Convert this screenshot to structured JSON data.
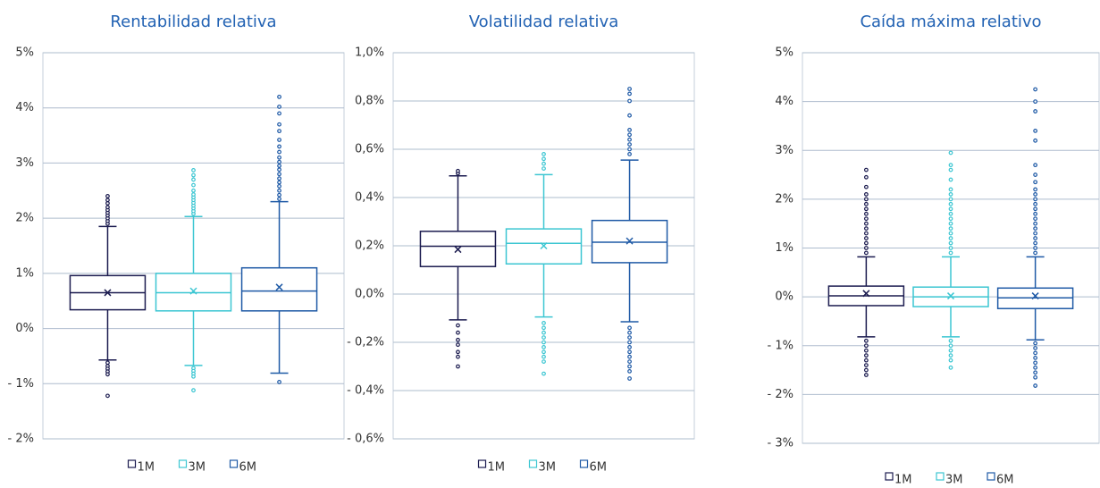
{
  "chart_data": [
    {
      "type": "box",
      "title": "Rentabilidad relativa",
      "ylim": [
        -2,
        5
      ],
      "yticks": [
        {
          "value": -2,
          "label": "- 2%"
        },
        {
          "value": -1,
          "label": "- 1%"
        },
        {
          "value": 0,
          "label": "0%"
        },
        {
          "value": 1,
          "label": "1%"
        },
        {
          "value": 2,
          "label": "2%"
        },
        {
          "value": 3,
          "label": "3%"
        },
        {
          "value": 4,
          "label": "4%"
        },
        {
          "value": 5,
          "label": "5%"
        }
      ],
      "grid": true,
      "series": [
        {
          "name": "1M",
          "color": "#1b1b4f",
          "min": -0.57,
          "q1": 0.34,
          "median": 0.65,
          "q3": 0.96,
          "max": 1.85,
          "mean": 0.65,
          "outliers": [
            1.9,
            1.95,
            2.0,
            2.05,
            2.1,
            2.15,
            2.2,
            2.27,
            2.33,
            2.4,
            -0.62,
            -0.68,
            -0.73,
            -0.78,
            -0.83,
            -1.22
          ]
        },
        {
          "name": "3M",
          "color": "#3cc6d2",
          "min": -0.67,
          "q1": 0.32,
          "median": 0.65,
          "q3": 1.0,
          "max": 2.03,
          "mean": 0.68,
          "outliers": [
            2.08,
            2.13,
            2.18,
            2.23,
            2.28,
            2.33,
            2.38,
            2.43,
            2.5,
            2.6,
            2.7,
            2.78,
            2.87,
            -0.72,
            -0.77,
            -0.82,
            -0.87,
            -1.12
          ]
        },
        {
          "name": "6M",
          "color": "#1f5aa6",
          "min": -0.81,
          "q1": 0.32,
          "median": 0.68,
          "q3": 1.1,
          "max": 2.3,
          "mean": 0.75,
          "outliers": [
            2.35,
            2.42,
            2.5,
            2.58,
            2.65,
            2.72,
            2.8,
            2.88,
            2.95,
            3.02,
            3.1,
            3.2,
            3.3,
            3.42,
            3.58,
            3.7,
            3.9,
            4.02,
            4.2,
            -0.97
          ]
        }
      ]
    },
    {
      "type": "box",
      "title": "Volatilidad relativa",
      "ylim": [
        -0.6,
        1.0
      ],
      "yticks": [
        {
          "value": -0.6,
          "label": "- 0,6%"
        },
        {
          "value": -0.4,
          "label": "- 0,4%"
        },
        {
          "value": -0.2,
          "label": "- 0,2%"
        },
        {
          "value": 0,
          "label": "0,0%"
        },
        {
          "value": 0.2,
          "label": "0,2%"
        },
        {
          "value": 0.4,
          "label": "0,4%"
        },
        {
          "value": 0.6,
          "label": "0,6%"
        },
        {
          "value": 0.8,
          "label": "0,8%"
        },
        {
          "value": 1.0,
          "label": "1,0%"
        }
      ],
      "grid": true,
      "series": [
        {
          "name": "1M",
          "color": "#1b1b4f",
          "min": -0.107,
          "q1": 0.114,
          "median": 0.198,
          "q3": 0.26,
          "max": 0.49,
          "mean": 0.185,
          "outliers": [
            0.5,
            0.51,
            -0.13,
            -0.16,
            -0.19,
            -0.21,
            -0.24,
            -0.26,
            -0.3
          ]
        },
        {
          "name": "3M",
          "color": "#3cc6d2",
          "min": -0.095,
          "q1": 0.125,
          "median": 0.21,
          "q3": 0.27,
          "max": 0.495,
          "mean": 0.2,
          "outliers": [
            0.52,
            0.54,
            0.56,
            0.58,
            -0.12,
            -0.14,
            -0.16,
            -0.18,
            -0.2,
            -0.22,
            -0.24,
            -0.26,
            -0.28,
            -0.33
          ]
        },
        {
          "name": "6M",
          "color": "#1f5aa6",
          "min": -0.115,
          "q1": 0.13,
          "median": 0.215,
          "q3": 0.305,
          "max": 0.555,
          "mean": 0.22,
          "outliers": [
            0.58,
            0.6,
            0.62,
            0.64,
            0.66,
            0.68,
            0.74,
            0.8,
            0.83,
            0.85,
            -0.14,
            -0.16,
            -0.18,
            -0.2,
            -0.22,
            -0.24,
            -0.26,
            -0.28,
            -0.3,
            -0.32,
            -0.35
          ]
        }
      ]
    },
    {
      "type": "box",
      "title": "Caída máxima relativo",
      "ylim": [
        -3,
        5
      ],
      "yticks": [
        {
          "value": -3,
          "label": "- 3%"
        },
        {
          "value": -2,
          "label": "- 2%"
        },
        {
          "value": -1,
          "label": "- 1%"
        },
        {
          "value": 0,
          "label": "0%"
        },
        {
          "value": 1,
          "label": "1%"
        },
        {
          "value": 2,
          "label": "2%"
        },
        {
          "value": 3,
          "label": "3%"
        },
        {
          "value": 4,
          "label": "4%"
        },
        {
          "value": 5,
          "label": "5%"
        }
      ],
      "grid": true,
      "series": [
        {
          "name": "1M",
          "color": "#1b1b4f",
          "min": -0.82,
          "q1": -0.18,
          "median": 0.02,
          "q3": 0.22,
          "max": 0.82,
          "mean": 0.07,
          "outliers": [
            0.9,
            1.0,
            1.1,
            1.2,
            1.3,
            1.4,
            1.5,
            1.6,
            1.7,
            1.8,
            1.9,
            2.0,
            2.1,
            2.25,
            2.45,
            2.6,
            -0.9,
            -1.0,
            -1.1,
            -1.2,
            -1.3,
            -1.4,
            -1.5,
            -1.6
          ]
        },
        {
          "name": "3M",
          "color": "#3cc6d2",
          "min": -0.82,
          "q1": -0.2,
          "median": 0,
          "q3": 0.2,
          "max": 0.82,
          "mean": 0.02,
          "outliers": [
            0.9,
            1.0,
            1.1,
            1.2,
            1.3,
            1.4,
            1.5,
            1.6,
            1.7,
            1.8,
            1.9,
            2.0,
            2.1,
            2.2,
            2.4,
            2.6,
            2.7,
            2.95,
            -0.9,
            -1.0,
            -1.1,
            -1.2,
            -1.3,
            -1.45
          ]
        },
        {
          "name": "6M",
          "color": "#1f5aa6",
          "min": -0.88,
          "q1": -0.24,
          "median": -0.02,
          "q3": 0.18,
          "max": 0.82,
          "mean": 0.02,
          "outliers": [
            0.9,
            1.0,
            1.1,
            1.2,
            1.3,
            1.4,
            1.5,
            1.6,
            1.7,
            1.8,
            1.9,
            2.0,
            2.1,
            2.2,
            2.35,
            2.5,
            2.7,
            3.2,
            3.4,
            3.8,
            4.0,
            4.25,
            -0.95,
            -1.05,
            -1.15,
            -1.25,
            -1.35,
            -1.45,
            -1.55,
            -1.65,
            -1.82
          ]
        }
      ]
    }
  ]
}
